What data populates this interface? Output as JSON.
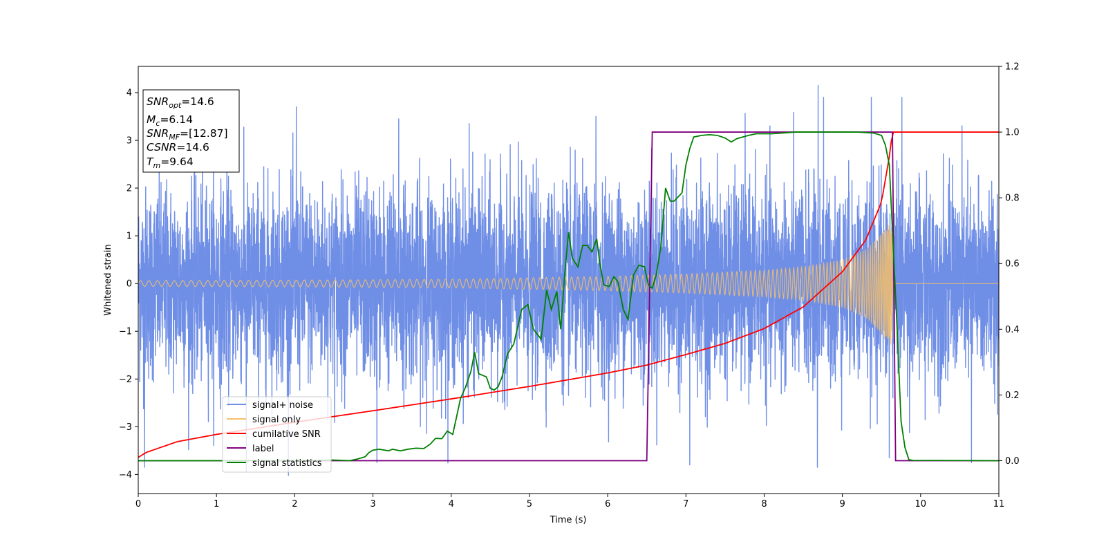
{
  "chart_data": {
    "type": "line",
    "title": "",
    "xlabel": "Time (s)",
    "ylabel": "Whitened strain",
    "ylabel_right": "",
    "xlim": [
      0,
      11
    ],
    "ylim": [
      -4.4,
      4.55
    ],
    "ylim_right": [
      -0.1,
      1.2
    ],
    "x_ticks": [
      0,
      1,
      2,
      3,
      4,
      5,
      6,
      7,
      8,
      9,
      10,
      11
    ],
    "y_ticks": [
      -4,
      -3,
      -2,
      -1,
      0,
      1,
      2,
      3,
      4
    ],
    "y_ticks_right": [
      "0.0",
      "0.2",
      "0.4",
      "0.6",
      "0.8",
      "1.0",
      "1.2"
    ],
    "grid": false,
    "legend_position": "lower-left",
    "info_box": {
      "position": "top-left",
      "lines": [
        {
          "label": "SNR",
          "sub": "opt",
          "value": "=14.6"
        },
        {
          "label": "M",
          "sub": "c",
          "value": "=6.14"
        },
        {
          "label": "SNR",
          "sub": "MF",
          "value": "=[12.87]"
        },
        {
          "label": "CSNR",
          "sub": "",
          "value": "=14.6"
        },
        {
          "label": "T",
          "sub": "m",
          "value": "=9.64"
        }
      ]
    },
    "series": [
      {
        "name": "signal+ noise",
        "color": "#6f8ee6",
        "axis": "left",
        "kind": "gaussian-noise",
        "sigma": 1.0,
        "range": [
          -4.1,
          4.2
        ],
        "spikes": [
          [
            0.08,
            -3.85
          ],
          [
            1.38,
            -3.95
          ],
          [
            2.02,
            3.7
          ],
          [
            3.05,
            -3.75
          ],
          [
            3.33,
            3.45
          ],
          [
            4.23,
            3.35
          ],
          [
            5.85,
            3.5
          ],
          [
            7.05,
            -3.8
          ],
          [
            8.68,
            -3.85
          ],
          [
            8.69,
            4.15
          ],
          [
            8.76,
            3.9
          ],
          [
            9.37,
            3.9
          ],
          [
            9.6,
            -3.65
          ],
          [
            9.76,
            3.9
          ],
          [
            10.65,
            -3.75
          ]
        ]
      },
      {
        "name": "signal only",
        "color": "#f5c06a",
        "axis": "left",
        "kind": "chirp-envelope",
        "merger_time": 9.64,
        "envelope": [
          [
            0,
            0.06
          ],
          [
            2,
            0.07
          ],
          [
            4,
            0.09
          ],
          [
            6,
            0.15
          ],
          [
            7,
            0.2
          ],
          [
            8,
            0.28
          ],
          [
            8.5,
            0.35
          ],
          [
            9,
            0.5
          ],
          [
            9.3,
            0.72
          ],
          [
            9.5,
            1.05
          ],
          [
            9.64,
            1.35
          ],
          [
            9.645,
            0
          ],
          [
            11,
            0
          ]
        ]
      },
      {
        "name": "cumilative SNR",
        "color": "#ff0000",
        "axis": "right",
        "x": [
          0,
          0.1,
          0.5,
          1,
          2,
          3,
          4,
          5,
          6,
          6.5,
          7,
          7.5,
          8,
          8.5,
          9,
          9.3,
          9.5,
          9.6,
          9.64,
          11
        ],
        "y": [
          0.01,
          0.025,
          0.058,
          0.08,
          0.117,
          0.152,
          0.188,
          0.226,
          0.267,
          0.291,
          0.323,
          0.357,
          0.402,
          0.468,
          0.575,
          0.672,
          0.787,
          0.925,
          1.0,
          1.0
        ]
      },
      {
        "name": "label",
        "color": "#800080",
        "axis": "right",
        "x": [
          0,
          6.5,
          6.57,
          9.64,
          9.68,
          11
        ],
        "y": [
          0,
          0,
          1,
          1,
          0,
          0
        ]
      },
      {
        "name": "signal statistics",
        "color": "#008000",
        "axis": "right",
        "x": [
          0,
          1,
          2,
          2.5,
          2.7,
          2.8,
          2.9,
          2.95,
          3.0,
          3.08,
          3.2,
          3.25,
          3.35,
          3.45,
          3.55,
          3.65,
          3.73,
          3.8,
          3.88,
          3.95,
          4.02,
          4.12,
          4.18,
          4.25,
          4.3,
          4.35,
          4.45,
          4.5,
          4.55,
          4.6,
          4.65,
          4.72,
          4.8,
          4.9,
          4.98,
          5.05,
          5.15,
          5.22,
          5.28,
          5.35,
          5.4,
          5.45,
          5.5,
          5.55,
          5.62,
          5.68,
          5.74,
          5.8,
          5.86,
          5.9,
          5.95,
          6.02,
          6.08,
          6.13,
          6.2,
          6.26,
          6.33,
          6.4,
          6.47,
          6.52,
          6.57,
          6.62,
          6.68,
          6.74,
          6.8,
          6.85,
          6.95,
          7.0,
          7.05,
          7.1,
          7.2,
          7.3,
          7.4,
          7.5,
          7.58,
          7.65,
          7.8,
          7.9,
          8.1,
          8.4,
          8.6,
          8.9,
          9.2,
          9.4,
          9.5,
          9.55,
          9.6,
          9.62,
          9.7,
          9.75,
          9.8,
          9.85,
          9.9,
          11
        ],
        "y": [
          0.0,
          0.0,
          0.0,
          0.002,
          0.0,
          0.005,
          0.012,
          0.025,
          0.032,
          0.035,
          0.03,
          0.035,
          0.03,
          0.035,
          0.038,
          0.037,
          0.05,
          0.068,
          0.067,
          0.09,
          0.08,
          0.19,
          0.222,
          0.27,
          0.33,
          0.265,
          0.255,
          0.22,
          0.215,
          0.225,
          0.255,
          0.325,
          0.355,
          0.46,
          0.475,
          0.4,
          0.37,
          0.52,
          0.46,
          0.515,
          0.4,
          0.565,
          0.695,
          0.615,
          0.59,
          0.655,
          0.655,
          0.635,
          0.675,
          0.6,
          0.535,
          0.53,
          0.56,
          0.545,
          0.46,
          0.43,
          0.565,
          0.595,
          0.59,
          0.535,
          0.525,
          0.565,
          0.65,
          0.83,
          0.79,
          0.79,
          0.815,
          0.9,
          0.95,
          0.985,
          0.99,
          0.992,
          0.99,
          0.982,
          0.97,
          0.98,
          0.99,
          0.995,
          0.995,
          1.0,
          1.0,
          1.0,
          1.0,
          0.997,
          0.99,
          0.96,
          0.9,
          0.8,
          0.4,
          0.12,
          0.04,
          0.003,
          0.001,
          0.0
        ]
      }
    ]
  }
}
